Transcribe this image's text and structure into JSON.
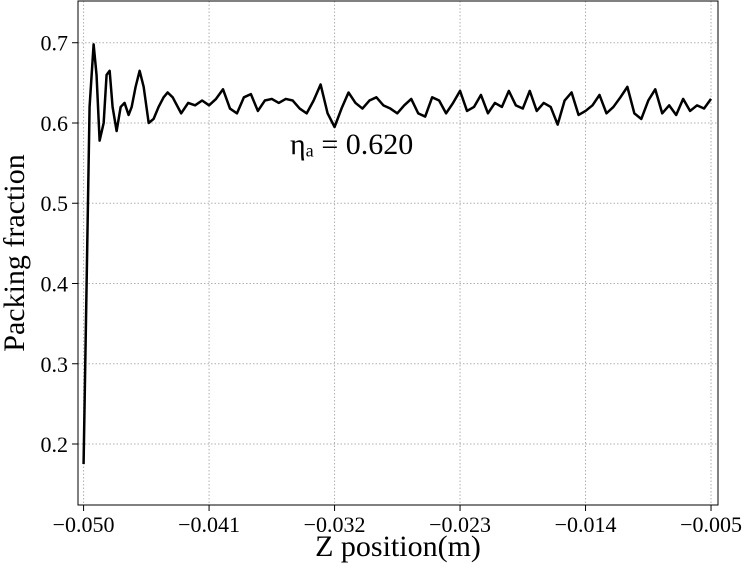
{
  "chart_data": {
    "type": "line",
    "xlabel": "Z position(m)",
    "ylabel": "Packing fraction",
    "annotation": "ηₐ = 0.620",
    "xlim": [
      -0.0504,
      -0.0045
    ],
    "ylim": [
      0.124,
      0.752
    ],
    "xticks": [
      {
        "value": -0.05,
        "label": "−0.050"
      },
      {
        "value": -0.041,
        "label": "−0.041"
      },
      {
        "value": -0.032,
        "label": "−0.032"
      },
      {
        "value": -0.023,
        "label": "−0.023"
      },
      {
        "value": -0.014,
        "label": "−0.014"
      },
      {
        "value": -0.005,
        "label": "−0.005"
      }
    ],
    "yticks": [
      0.2,
      0.3,
      0.4,
      0.5,
      0.6,
      0.7
    ],
    "grid": true,
    "series": [
      {
        "color": "#000000",
        "x": [
          -0.05,
          -0.04957,
          -0.04928,
          -0.04907,
          -0.04885,
          -0.04856,
          -0.04835,
          -0.04813,
          -0.04792,
          -0.04763,
          -0.04734,
          -0.04706,
          -0.04677,
          -0.04655,
          -0.04627,
          -0.04598,
          -0.04569,
          -0.04533,
          -0.04498,
          -0.04462,
          -0.04426,
          -0.04397,
          -0.04361,
          -0.043,
          -0.0425,
          -0.042,
          -0.0415,
          -0.041,
          -0.0405,
          -0.04,
          -0.0395,
          -0.039,
          -0.0385,
          -0.038,
          -0.0375,
          -0.037,
          -0.0365,
          -0.036,
          -0.0355,
          -0.035,
          -0.0345,
          -0.034,
          -0.0335,
          -0.033,
          -0.0325,
          -0.032,
          -0.0315,
          -0.031,
          -0.0305,
          -0.03,
          -0.0295,
          -0.029,
          -0.0285,
          -0.028,
          -0.0275,
          -0.027,
          -0.0265,
          -0.026,
          -0.0255,
          -0.025,
          -0.0245,
          -0.024,
          -0.0235,
          -0.023,
          -0.0225,
          -0.022,
          -0.0215,
          -0.021,
          -0.0205,
          -0.02,
          -0.0195,
          -0.019,
          -0.0185,
          -0.018,
          -0.0175,
          -0.017,
          -0.0165,
          -0.016,
          -0.0155,
          -0.015,
          -0.0145,
          -0.014,
          -0.0135,
          -0.013,
          -0.0125,
          -0.012,
          -0.0115,
          -0.011,
          -0.0105,
          -0.01,
          -0.0095,
          -0.009,
          -0.0085,
          -0.008,
          -0.0075,
          -0.007,
          -0.0065,
          -0.006,
          -0.0055,
          -0.005
        ],
        "values": [
          0.175,
          0.62,
          0.698,
          0.66,
          0.578,
          0.6,
          0.66,
          0.665,
          0.62,
          0.59,
          0.62,
          0.625,
          0.61,
          0.62,
          0.645,
          0.665,
          0.645,
          0.6,
          0.605,
          0.62,
          0.632,
          0.638,
          0.632,
          0.612,
          0.625,
          0.622,
          0.628,
          0.622,
          0.63,
          0.642,
          0.618,
          0.612,
          0.632,
          0.636,
          0.615,
          0.628,
          0.63,
          0.625,
          0.63,
          0.628,
          0.618,
          0.612,
          0.628,
          0.648,
          0.612,
          0.595,
          0.618,
          0.638,
          0.625,
          0.618,
          0.628,
          0.632,
          0.622,
          0.618,
          0.612,
          0.622,
          0.63,
          0.612,
          0.608,
          0.632,
          0.628,
          0.612,
          0.625,
          0.64,
          0.615,
          0.62,
          0.635,
          0.612,
          0.625,
          0.62,
          0.64,
          0.622,
          0.618,
          0.64,
          0.615,
          0.625,
          0.62,
          0.598,
          0.628,
          0.638,
          0.61,
          0.615,
          0.622,
          0.635,
          0.612,
          0.62,
          0.632,
          0.645,
          0.612,
          0.605,
          0.628,
          0.642,
          0.612,
          0.622,
          0.61,
          0.63,
          0.615,
          0.622,
          0.618,
          0.63
        ]
      }
    ]
  }
}
